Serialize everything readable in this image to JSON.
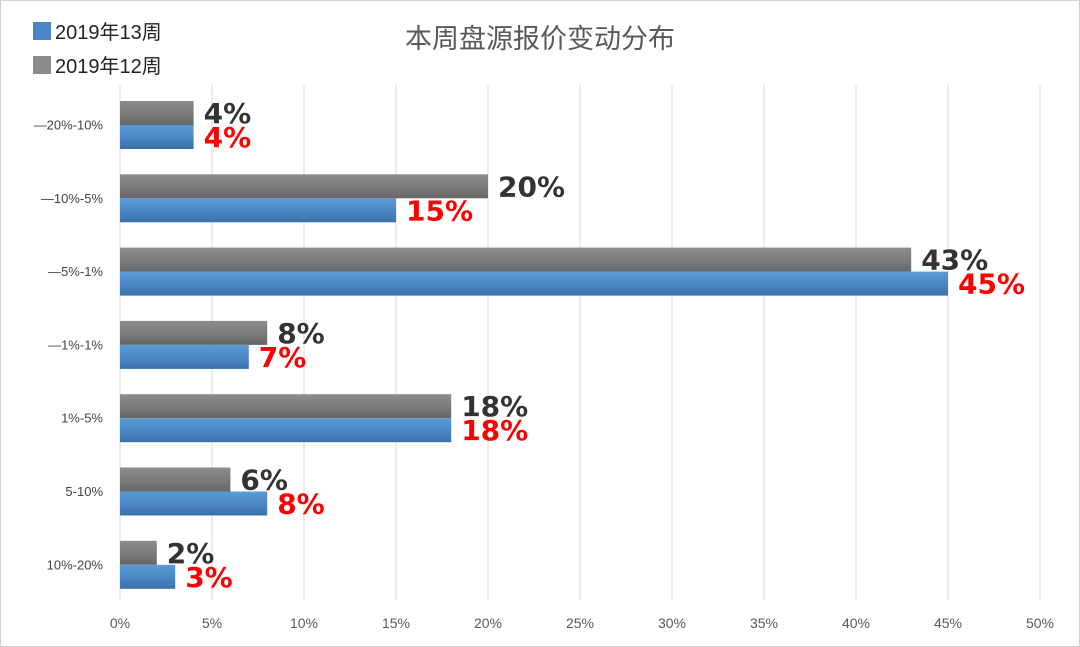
{
  "colors": {
    "series_current": "#4a86c5",
    "series_previous": "#7f7f7f",
    "label_current": "#ff0000",
    "label_previous": "#333333",
    "grid": "#d9d9d9"
  },
  "chart_data": {
    "type": "bar",
    "orientation": "horizontal",
    "title": "本周盘源报价变动分布",
    "categories": [
      "—20%-10%",
      "—10%-5%",
      "—5%-1%",
      "—1%-1%",
      "1%-5%",
      "5-10%",
      "10%-20%"
    ],
    "series": [
      {
        "name": "2019年12周",
        "values": [
          4,
          20,
          43,
          8,
          18,
          6,
          2
        ],
        "labels": [
          "4%",
          "20%",
          "43%",
          "8%",
          "18%",
          "6%",
          "2%"
        ]
      },
      {
        "name": "2019年13周",
        "values": [
          4,
          15,
          45,
          7,
          18,
          8,
          3
        ],
        "labels": [
          "4%",
          "15%",
          "45%",
          "7%",
          "18%",
          "8%",
          "3%"
        ]
      }
    ],
    "x_ticks": [
      "0%",
      "5%",
      "10%",
      "15%",
      "20%",
      "25%",
      "30%",
      "35%",
      "40%",
      "45%",
      "50%"
    ],
    "xlim": [
      0,
      50
    ],
    "grid": true,
    "legend_position": "top-left",
    "legend": [
      "2019年13周",
      "2019年12周"
    ]
  }
}
